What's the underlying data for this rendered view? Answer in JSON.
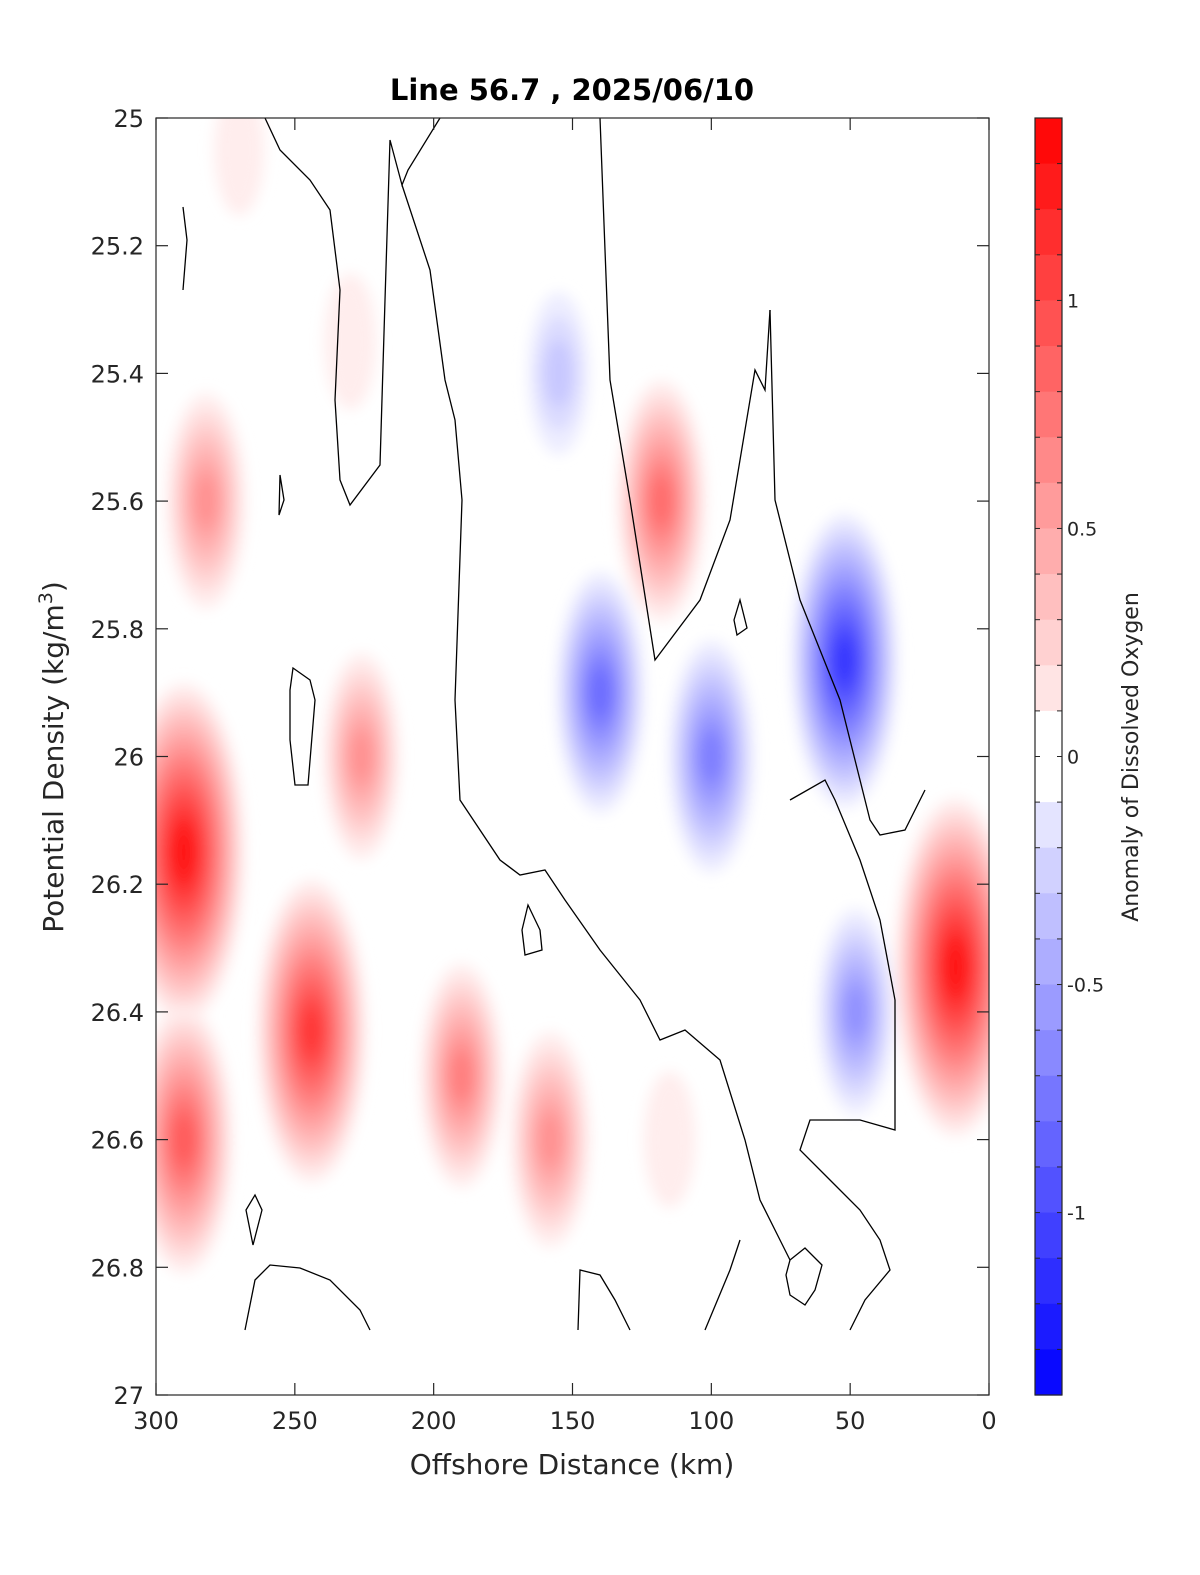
{
  "chart_data": {
    "type": "heatmap",
    "title": "Line 56.7 , 2025/06/10",
    "xlabel": "Offshore Distance (km)",
    "ylabel": "Potential Density (kg/m",
    "ylabel_sup": "3",
    "ylabel_close": ")",
    "xlim": [
      300,
      0
    ],
    "ylim": [
      25,
      27
    ],
    "x_reversed": true,
    "y_reversed": true,
    "xticks": [
      300,
      250,
      200,
      150,
      100,
      50,
      0
    ],
    "xtick_labels": [
      "300",
      "250",
      "200",
      "150",
      "100",
      "50",
      "0"
    ],
    "yticks": [
      25,
      25.2,
      25.4,
      25.6,
      25.8,
      26,
      26.2,
      26.4,
      26.6,
      26.8,
      27
    ],
    "ytick_labels": [
      "25",
      "25.2",
      "25.4",
      "25.6",
      "25.8",
      "26",
      "26.2",
      "26.4",
      "26.6",
      "26.8",
      "27"
    ],
    "colorbar": {
      "label": "Anomaly of Dissolved Oxygen",
      "range": [
        -1.4,
        1.4
      ],
      "step": 0.1,
      "ticks": [
        1,
        0.5,
        0,
        -0.5,
        -1
      ],
      "tick_labels": [
        "1",
        "0.5",
        "0",
        "-0.5",
        "-1"
      ],
      "low_color": "#0000ff",
      "zero_color": "#ffffff",
      "high_color": "#ff0000"
    },
    "contour_level": 0,
    "features": [
      {
        "x": 290,
        "y": 26.15,
        "value": 1.3
      },
      {
        "x": 282,
        "y": 25.6,
        "value": 0.6
      },
      {
        "x": 290,
        "y": 26.6,
        "value": 0.9
      },
      {
        "x": 244,
        "y": 26.43,
        "value": 1.1
      },
      {
        "x": 226,
        "y": 26.0,
        "value": 0.55
      },
      {
        "x": 190,
        "y": 26.5,
        "value": 0.65
      },
      {
        "x": 158,
        "y": 26.6,
        "value": 0.6
      },
      {
        "x": 230,
        "y": 25.35,
        "value": 0.15
      },
      {
        "x": 270,
        "y": 25.05,
        "value": 0.12
      },
      {
        "x": 140,
        "y": 25.9,
        "value": -0.75
      },
      {
        "x": 100,
        "y": 26.0,
        "value": -0.7
      },
      {
        "x": 155,
        "y": 25.4,
        "value": -0.3
      },
      {
        "x": 48,
        "y": 26.4,
        "value": -0.55
      },
      {
        "x": 52,
        "y": 25.85,
        "value": -1.05
      },
      {
        "x": 118,
        "y": 25.6,
        "value": 0.75
      },
      {
        "x": 12,
        "y": 26.33,
        "value": 1.3
      },
      {
        "x": 115,
        "y": 26.6,
        "value": 0.15
      }
    ]
  }
}
